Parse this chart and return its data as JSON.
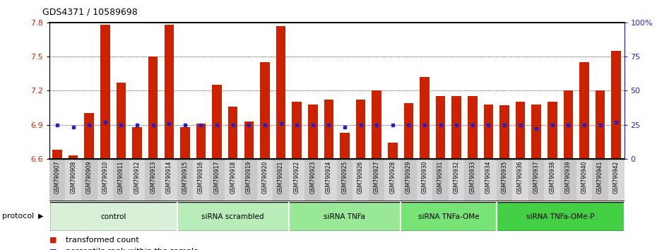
{
  "title": "GDS4371 / 10589698",
  "samples": [
    "GSM790907",
    "GSM790908",
    "GSM790909",
    "GSM790910",
    "GSM790911",
    "GSM790912",
    "GSM790913",
    "GSM790914",
    "GSM790915",
    "GSM790916",
    "GSM790917",
    "GSM790918",
    "GSM790919",
    "GSM790920",
    "GSM790921",
    "GSM790922",
    "GSM790923",
    "GSM790924",
    "GSM790925",
    "GSM790926",
    "GSM790927",
    "GSM790928",
    "GSM790929",
    "GSM790930",
    "GSM790931",
    "GSM790932",
    "GSM790933",
    "GSM790934",
    "GSM790935",
    "GSM790936",
    "GSM790937",
    "GSM790938",
    "GSM790939",
    "GSM790940",
    "GSM790941",
    "GSM790942"
  ],
  "bar_values": [
    6.68,
    6.63,
    7.0,
    7.78,
    7.27,
    6.88,
    7.5,
    7.78,
    6.88,
    6.91,
    7.25,
    7.06,
    6.93,
    7.45,
    7.77,
    7.1,
    7.08,
    7.12,
    6.83,
    7.12,
    7.2,
    6.74,
    7.09,
    7.32,
    7.15,
    7.15,
    7.15,
    7.08,
    7.07,
    7.1,
    7.08,
    7.1,
    7.2,
    7.45,
    7.2,
    7.55
  ],
  "percentile_values": [
    25,
    23,
    25,
    27,
    25,
    25,
    25,
    26,
    25,
    25,
    25,
    25,
    25,
    25,
    26,
    25,
    25,
    25,
    23,
    25,
    25,
    25,
    25,
    25,
    25,
    25,
    25,
    25,
    25,
    25,
    22,
    25,
    25,
    25,
    25,
    27
  ],
  "groups": [
    {
      "label": "control",
      "start": 0,
      "end": 8,
      "color": "#d8f0d8"
    },
    {
      "label": "siRNA scrambled",
      "start": 8,
      "end": 15,
      "color": "#b8ecb8"
    },
    {
      "label": "siRNA TNFa",
      "start": 15,
      "end": 22,
      "color": "#98e898"
    },
    {
      "label": "siRNA TNFa-OMe",
      "start": 22,
      "end": 28,
      "color": "#78e478"
    },
    {
      "label": "siRNA TNFa-OMe-P",
      "start": 28,
      "end": 36,
      "color": "#44d044"
    }
  ],
  "ymin": 6.6,
  "ymax": 7.8,
  "bar_color": "#cc2200",
  "percentile_color": "#2222cc",
  "yticks": [
    6.6,
    6.9,
    7.2,
    7.5,
    7.8
  ],
  "ytick_labels": [
    "6.6",
    "6.9",
    "7.2",
    "7.5",
    "7.8"
  ],
  "right_yticks": [
    0,
    25,
    50,
    75,
    100
  ],
  "right_ytick_labels": [
    "0",
    "25",
    "50",
    "75",
    "100%"
  ]
}
